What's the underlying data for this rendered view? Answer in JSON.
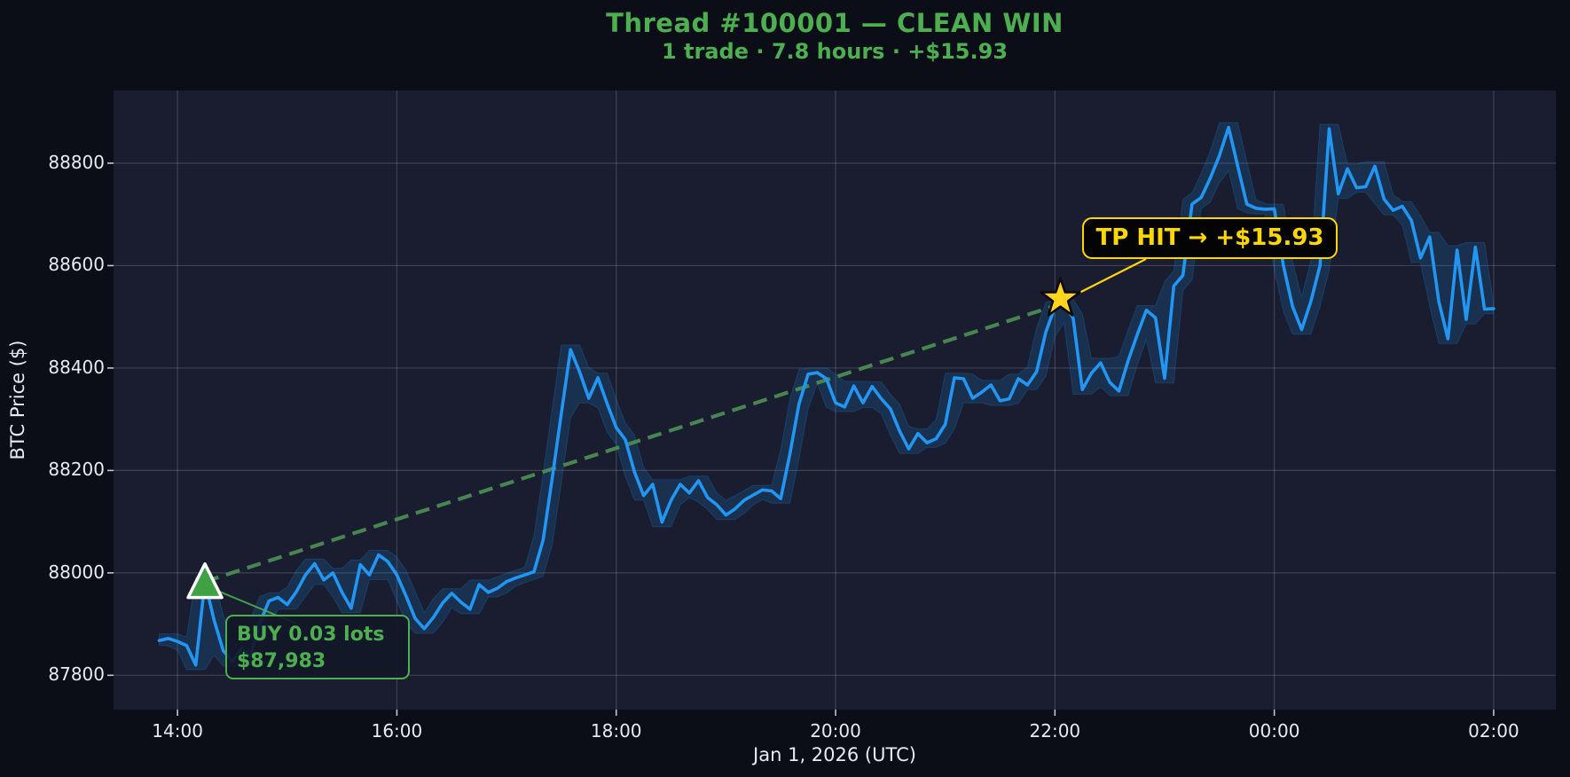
{
  "chart_data": {
    "type": "line",
    "title": "Thread #100001 — CLEAN WIN",
    "subtitle": "1 trade · 7.8 hours · +$15.93",
    "xlabel": "Jan 1, 2026 (UTC)",
    "ylabel": "BTC Price ($)",
    "legend": "none",
    "grid": "on",
    "x_ticks": [
      {
        "t_min": 60,
        "label": "14:00"
      },
      {
        "t_min": 180,
        "label": "16:00"
      },
      {
        "t_min": 300,
        "label": "18:00"
      },
      {
        "t_min": 420,
        "label": "20:00"
      },
      {
        "t_min": 540,
        "label": "22:00"
      },
      {
        "t_min": 660,
        "label": "00:00"
      },
      {
        "t_min": 780,
        "label": "02:00"
      }
    ],
    "y_ticks": [
      87800,
      88000,
      88200,
      88400,
      88600,
      88800
    ],
    "xlim_minutes_since_1300": [
      25,
      814
    ],
    "ylim": [
      87733,
      88942
    ],
    "series": {
      "name": "BTC price",
      "t_start_min": 50,
      "dt_min": 5,
      "values": [
        87868,
        87872,
        87866,
        87858,
        87820,
        87983,
        87908,
        87848,
        87827,
        87852,
        87838,
        87902,
        87945,
        87952,
        87938,
        87963,
        87996,
        88018,
        87986,
        88000,
        87962,
        87931,
        88016,
        87996,
        88035,
        88022,
        87996,
        87955,
        87911,
        87891,
        87913,
        87941,
        87960,
        87943,
        87929,
        87977,
        87962,
        87970,
        87983,
        87990,
        87996,
        88002,
        88064,
        88185,
        88312,
        88436,
        88392,
        88341,
        88381,
        88331,
        88284,
        88260,
        88197,
        88151,
        88173,
        88099,
        88142,
        88173,
        88156,
        88180,
        88147,
        88133,
        88113,
        88125,
        88142,
        88152,
        88162,
        88160,
        88145,
        88232,
        88330,
        88388,
        88391,
        88379,
        88332,
        88324,
        88365,
        88332,
        88364,
        88340,
        88320,
        88277,
        88242,
        88272,
        88254,
        88262,
        88290,
        88381,
        88379,
        88341,
        88353,
        88367,
        88336,
        88340,
        88379,
        88367,
        88393,
        88470,
        88519,
        88525,
        88497,
        88358,
        88390,
        88410,
        88372,
        88355,
        88414,
        88465,
        88513,
        88498,
        88380,
        88560,
        88581,
        88720,
        88733,
        88771,
        88815,
        88870,
        88794,
        88720,
        88712,
        88710,
        88711,
        88600,
        88520,
        88475,
        88530,
        88600,
        88867,
        88740,
        88789,
        88752,
        88754,
        88794,
        88730,
        88708,
        88716,
        88688,
        88615,
        88656,
        88530,
        88457,
        88630,
        88495,
        88636,
        88515,
        88516
      ]
    },
    "band": {
      "kind": "high-low envelope around price line",
      "pad": 9
    },
    "trade": {
      "entry": {
        "t_min": 75,
        "time": "14:15",
        "price": 87983,
        "label_line1": "BUY 0.03 lots",
        "label_line2": "$87,983",
        "marker": "green-up-triangle"
      },
      "exit": {
        "t_min": 543,
        "time": "22:03",
        "price": 88525,
        "label": "TP HIT → +$15.93",
        "marker": "gold-star"
      },
      "trades": 1,
      "duration_hours": 7.8,
      "pnl_usd": 15.93
    },
    "colors": {
      "figure_bg": "#0b0e17",
      "plot_bg": "#191d2f",
      "grid": "rgba(205,212,232,0.20)",
      "price_line": "#2196f3",
      "band_fill": "rgba(33,150,243,0.16)",
      "trend_dash": "#4a8c52",
      "title_green": "#4caf50",
      "buy_green": "#4caf50",
      "gold": "#ffd700",
      "star_fill": "#ffd31e",
      "triangle_fill": "#3fa044",
      "tick_text": "#e8eaf2"
    }
  }
}
